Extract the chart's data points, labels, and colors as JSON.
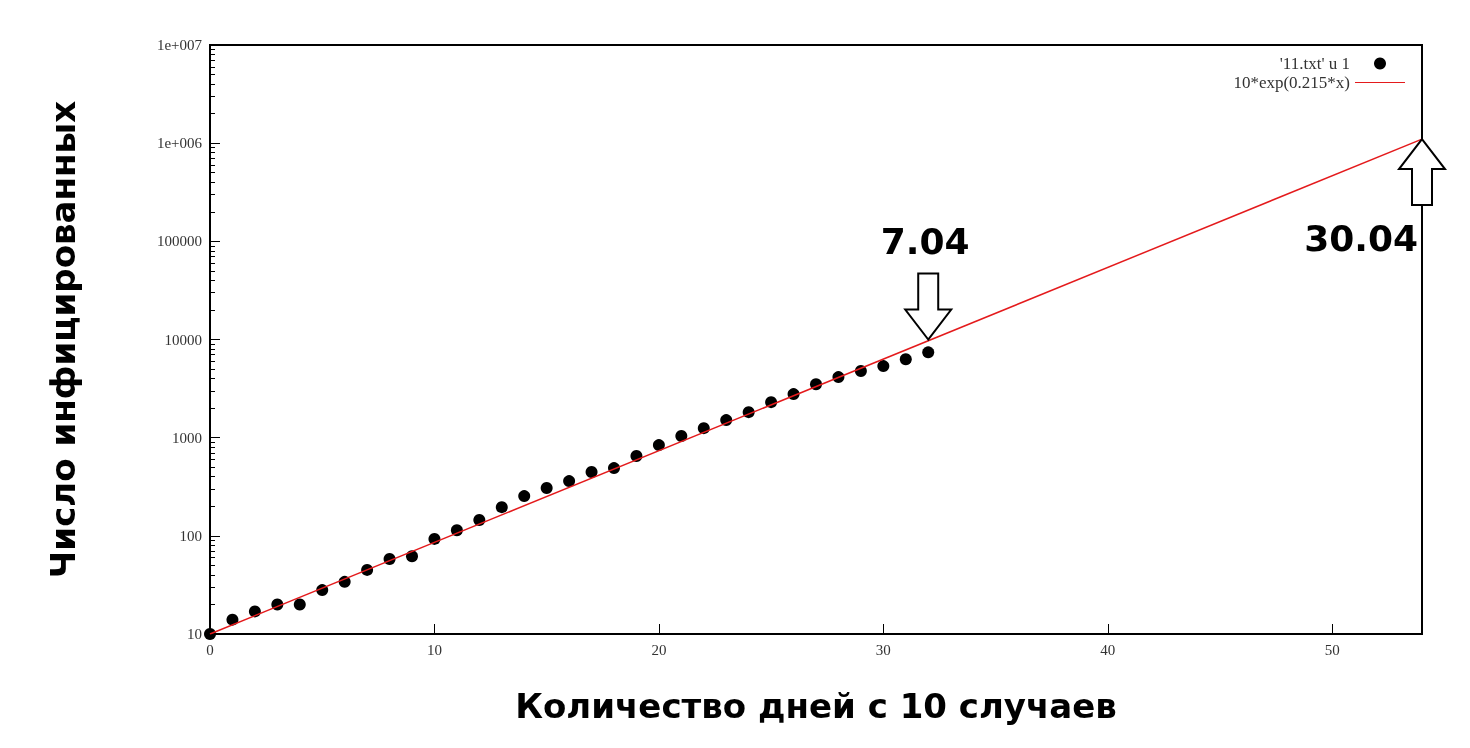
{
  "chart_data": {
    "type": "scatter",
    "xlabel": "Количество дней с 10 случаев",
    "ylabel": "Число инфицированных",
    "x": [
      0,
      1,
      2,
      3,
      4,
      5,
      6,
      7,
      8,
      9,
      10,
      11,
      12,
      13,
      14,
      15,
      16,
      17,
      18,
      19,
      20,
      21,
      22,
      23,
      24,
      25,
      26,
      27,
      28,
      29,
      30,
      31,
      32
    ],
    "series": [
      {
        "name": "'11.txt' u 1",
        "color": "#000000",
        "marker": "circle",
        "values": [
          10,
          14,
          17,
          20,
          20,
          28,
          34,
          45,
          58,
          62,
          93,
          114,
          145,
          196,
          254,
          307,
          361,
          447,
          490,
          650,
          840,
          1040,
          1250,
          1510,
          1820,
          2300,
          2780,
          3500,
          4140,
          4770,
          5360,
          6300,
          7400
        ]
      },
      {
        "name": "10*exp(0.215*x)",
        "type": "line",
        "color": "#e41a1c",
        "marker": "none",
        "line_style": "solid",
        "x": [
          0,
          54
        ],
        "values": [
          10,
          1100000
        ]
      }
    ],
    "xlim": [
      0,
      54
    ],
    "xticks": [
      0,
      10,
      20,
      30,
      40,
      50
    ],
    "ylim": [
      10,
      10000000
    ],
    "yticks": [
      10,
      100,
      1000,
      10000,
      100000,
      {
        "value": 1000000,
        "label": "1e+006"
      },
      {
        "value": 10000000,
        "label": "1e+007"
      }
    ],
    "log": "y",
    "grid": false,
    "legend": "top right",
    "annotations": [
      {
        "text": "7.04",
        "x": 32,
        "y": 10000
      },
      {
        "text": "30.04",
        "x": 54,
        "y": 1100000
      }
    ]
  }
}
